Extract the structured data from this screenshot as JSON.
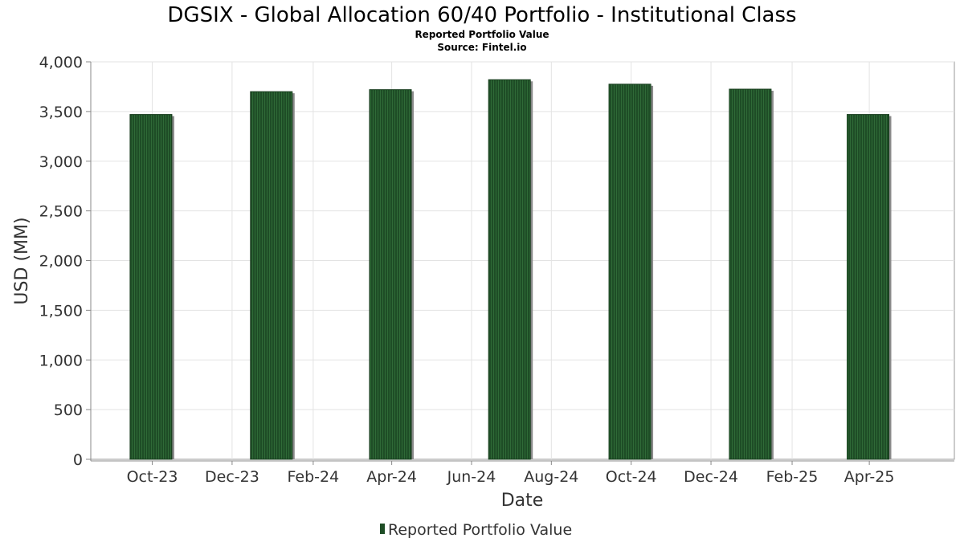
{
  "chart_data": {
    "type": "bar",
    "title": "DGSIX - Global Allocation 60/40 Portfolio - Institutional Class",
    "subtitle": "Reported Portfolio Value",
    "source": "Source: Fintel.io",
    "xlabel": "Date",
    "ylabel": "USD (MM)",
    "ylim": [
      0,
      4000
    ],
    "yticks": [
      0,
      500,
      1000,
      1500,
      2000,
      2500,
      3000,
      3500,
      4000
    ],
    "ytick_labels": [
      "0",
      "500",
      "1,000",
      "1,500",
      "2,000",
      "2,500",
      "3,000",
      "3,500",
      "4,000"
    ],
    "xlim": [
      "2023-08-15",
      "2025-06-05"
    ],
    "xticks": [
      "2023-10-01",
      "2023-12-01",
      "2024-02-01",
      "2024-04-01",
      "2024-06-01",
      "2024-08-01",
      "2024-10-01",
      "2024-12-01",
      "2025-02-01",
      "2025-04-01"
    ],
    "xtick_labels": [
      "Oct-23",
      "Dec-23",
      "Feb-24",
      "Apr-24",
      "Jun-24",
      "Aug-24",
      "Oct-24",
      "Dec-24",
      "Feb-25",
      "Apr-25"
    ],
    "grid": true,
    "legend_position": "bottom-center",
    "series": [
      {
        "name": "Reported Portfolio Value",
        "color": "#1e4d26",
        "x": [
          "2023-09-30",
          "2023-12-31",
          "2024-03-31",
          "2024-06-30",
          "2024-09-30",
          "2024-12-31",
          "2025-03-31"
        ],
        "values": [
          3470,
          3700,
          3720,
          3820,
          3775,
          3725,
          3470
        ]
      }
    ]
  }
}
